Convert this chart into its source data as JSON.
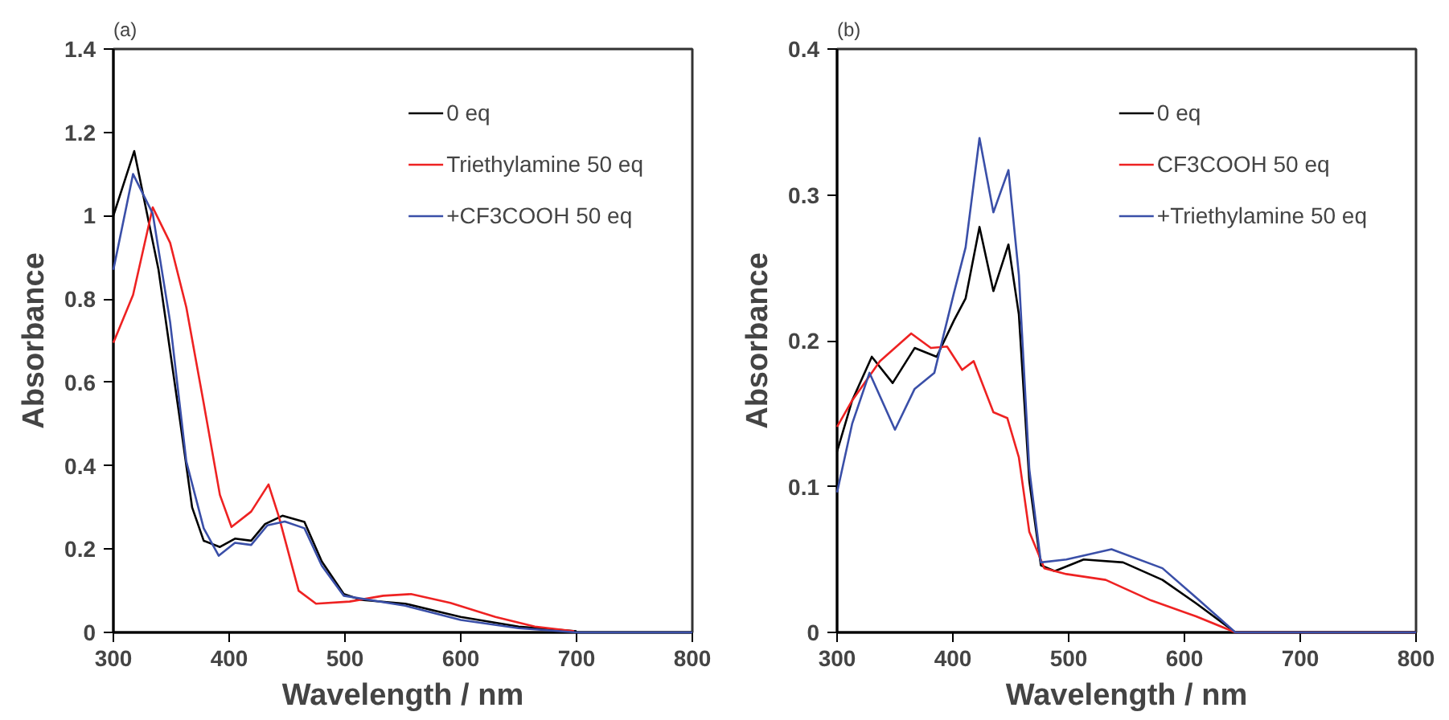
{
  "chart_data": [
    {
      "type": "line",
      "title": "(a)",
      "xlabel": "Wavelength / nm",
      "ylabel": "Absorbance",
      "xlim": [
        300,
        800
      ],
      "ylim": [
        0,
        1.4
      ],
      "xticks": [
        300,
        400,
        500,
        600,
        700,
        800
      ],
      "yticks": [
        0,
        0.2,
        0.4,
        0.6,
        0.8,
        1,
        1.2,
        1.4
      ],
      "grid": false,
      "legend": "top right",
      "line_style": "solid",
      "marker": "none",
      "series": [
        {
          "name": "0 eq",
          "color": "#000000",
          "x": [
            300,
            318,
            339,
            358,
            368,
            378,
            392,
            405,
            419,
            431,
            446,
            465,
            480,
            499,
            514,
            552,
            600,
            650,
            700
          ],
          "values": [
            1.0,
            1.155,
            0.87,
            0.5,
            0.3,
            0.22,
            0.205,
            0.225,
            0.22,
            0.26,
            0.28,
            0.265,
            0.17,
            0.092,
            0.078,
            0.069,
            0.037,
            0.014,
            0.003
          ]
        },
        {
          "name": "Triethylamine 50 eq",
          "color": "#ee2222",
          "x": [
            300,
            317,
            334,
            349,
            363,
            378,
            392,
            402,
            419,
            434,
            443,
            460,
            475,
            504,
            533,
            557,
            591,
            630,
            664,
            698
          ],
          "values": [
            0.695,
            0.81,
            1.02,
            0.935,
            0.78,
            0.55,
            0.33,
            0.253,
            0.29,
            0.355,
            0.277,
            0.1,
            0.069,
            0.074,
            0.088,
            0.092,
            0.071,
            0.037,
            0.014,
            0.003
          ]
        },
        {
          "name": "+CF3COOH 50 eq",
          "color": "#3a4fa8",
          "x": [
            300,
            317,
            334,
            349,
            363,
            378,
            391,
            405,
            419,
            433,
            448,
            465,
            480,
            499,
            552,
            600,
            650,
            700,
            800
          ],
          "values": [
            0.87,
            1.1,
            1.005,
            0.745,
            0.41,
            0.25,
            0.184,
            0.215,
            0.21,
            0.257,
            0.266,
            0.25,
            0.16,
            0.088,
            0.064,
            0.03,
            0.01,
            0,
            0
          ]
        }
      ]
    },
    {
      "type": "line",
      "title": "(b)",
      "xlabel": "Wavelength / nm",
      "ylabel": "Absorbance",
      "xlim": [
        300,
        800
      ],
      "ylim": [
        0,
        0.4
      ],
      "xticks": [
        300,
        400,
        500,
        600,
        700,
        800
      ],
      "yticks": [
        0,
        0.1,
        0.2,
        0.3,
        0.4
      ],
      "grid": false,
      "legend": "top right",
      "line_style": "solid",
      "marker": "none",
      "series": [
        {
          "name": "0 eq",
          "color": "#000000",
          "x": [
            300,
            313,
            330,
            348,
            367,
            386,
            401,
            411,
            423,
            435,
            448,
            457,
            466,
            476,
            488,
            513,
            547,
            581,
            610,
            644,
            800
          ],
          "values": [
            0.124,
            0.159,
            0.189,
            0.171,
            0.195,
            0.189,
            0.214,
            0.229,
            0.278,
            0.234,
            0.266,
            0.218,
            0.104,
            0.046,
            0.042,
            0.05,
            0.048,
            0.036,
            0.02,
            0,
            0
          ]
        },
        {
          "name": "CF3COOH 50 eq",
          "color": "#ee2222",
          "x": [
            300,
            313,
            337,
            364,
            381,
            395,
            408,
            418,
            435,
            447,
            457,
            466,
            479,
            498,
            532,
            571,
            610,
            644,
            800
          ],
          "values": [
            0.141,
            0.159,
            0.186,
            0.205,
            0.195,
            0.196,
            0.18,
            0.186,
            0.151,
            0.147,
            0.12,
            0.069,
            0.044,
            0.04,
            0.036,
            0.022,
            0.011,
            0,
            0
          ]
        },
        {
          "name": "+Triethylamine 50 eq",
          "color": "#3a4fa8",
          "x": [
            300,
            313,
            328,
            350,
            367,
            384,
            401,
            411,
            423,
            435,
            448,
            457,
            466,
            476,
            498,
            537,
            581,
            610,
            644,
            800
          ],
          "values": [
            0.096,
            0.143,
            0.178,
            0.139,
            0.167,
            0.178,
            0.233,
            0.264,
            0.339,
            0.288,
            0.317,
            0.245,
            0.112,
            0.048,
            0.05,
            0.057,
            0.044,
            0.024,
            0,
            0
          ]
        }
      ]
    }
  ]
}
